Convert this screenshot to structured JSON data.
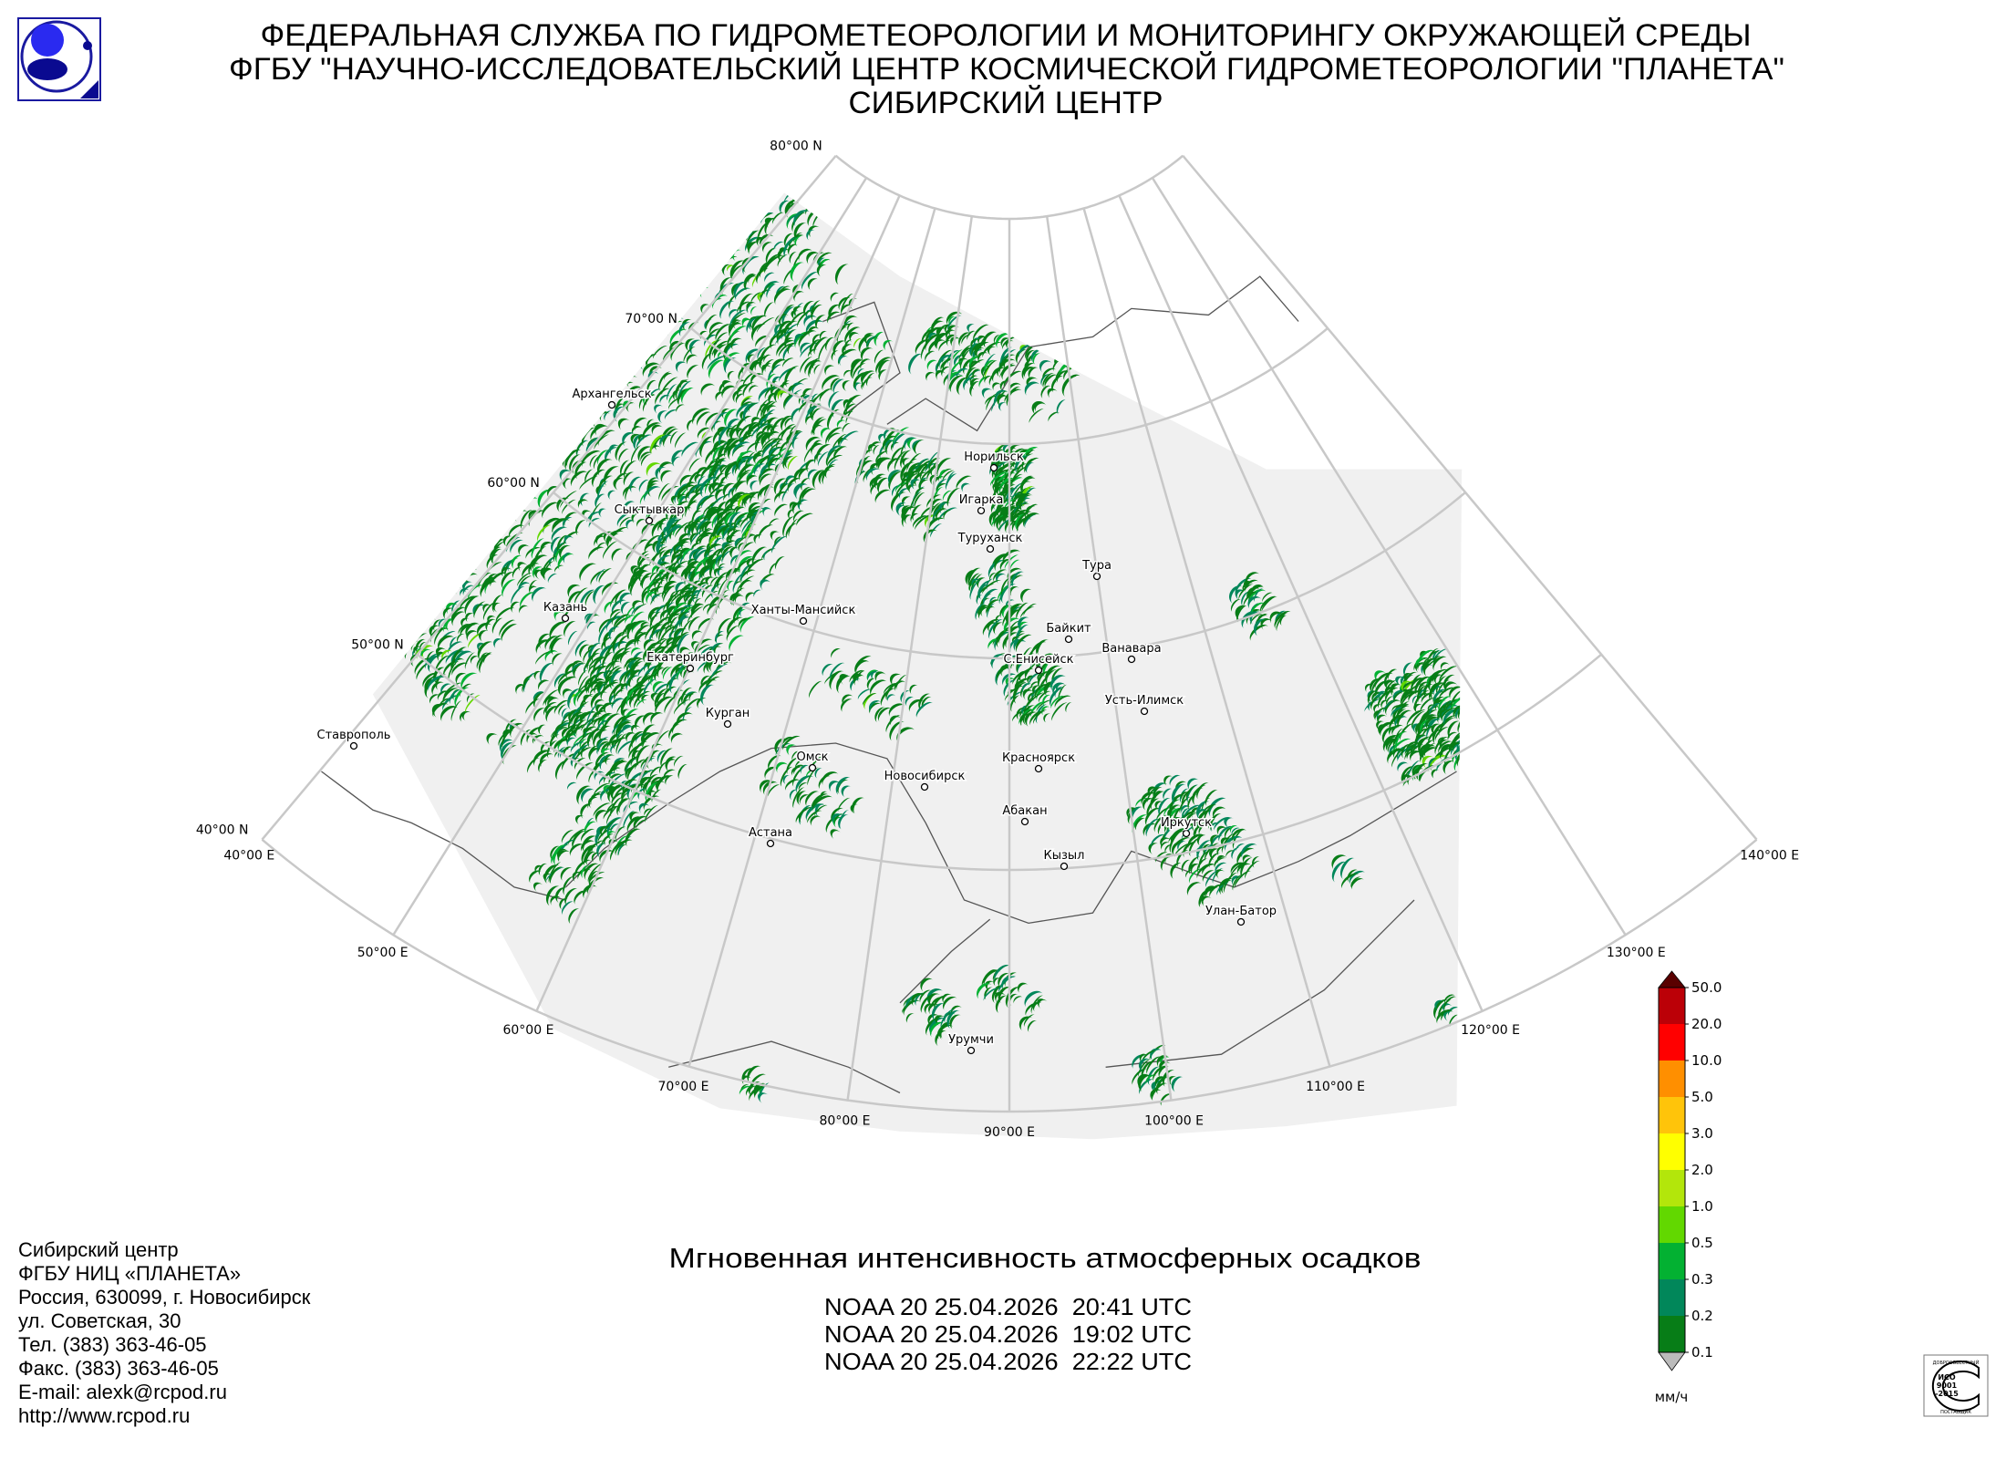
{
  "header": {
    "line1": "ФЕДЕРАЛЬНАЯ СЛУЖБА ПО ГИДРОМЕТЕОРОЛОГИИ И МОНИТОРИНГУ ОКРУЖАЮЩЕЙ СРЕДЫ",
    "line2": "ФГБУ \"НАУЧНО-ИССЛЕДОВАТЕЛЬСКИЙ ЦЕНТР КОСМИЧЕСКОЙ ГИДРОМЕТЕОРОЛОГИИ \"ПЛАНЕТА\"",
    "line3": "СИБИРСКИЙ ЦЕНТР",
    "logo_icon": "planeta-logo-icon"
  },
  "map": {
    "latitudes": [
      "80°00 N",
      "70°00 N",
      "60°00 N",
      "50°00 N",
      "40°00 N"
    ],
    "longitudes": [
      "40°00 E",
      "50°00 E",
      "60°00 E",
      "70°00 E",
      "80°00 E",
      "90°00 E",
      "100°00 E",
      "110°00 E",
      "120°00 E",
      "130°00 E",
      "140°00 E"
    ],
    "cities": [
      "Архангельск",
      "Сыктывкар",
      "Казань",
      "Екатеринбург",
      "Ставрополь",
      "Курган",
      "Ханты-Мансийск",
      "Омск",
      "Астана",
      "Новосибирск",
      "Норильск",
      "Игарка",
      "Туруханск",
      "Тура",
      "Байкит",
      "С.Енисейск",
      "Ванавара",
      "Усть-Илимск",
      "Красноярск",
      "Абакан",
      "Кызыл",
      "Иркутск",
      "Улан-Батор",
      "Урумчи"
    ],
    "coverage_color": "#f0f0f0",
    "grid_color": "#c8c8c8"
  },
  "legend": {
    "unit": "мм/ч",
    "ticks": [
      "0.1",
      "0.2",
      "0.3",
      "0.5",
      "1.0",
      "2.0",
      "3.0",
      "5.0",
      "10.0",
      "20.0",
      "50.0"
    ],
    "colors": [
      "#077d17",
      "#01875a",
      "#03b132",
      "#62d800",
      "#b3e60b",
      "#ffff00",
      "#ffc40a",
      "#ff8f00",
      "#ff0000",
      "#bb0007"
    ],
    "over_color": "#5a0000",
    "under_color": "#bbbbbb"
  },
  "title": "Мгновенная интенсивность атмосферных осадков",
  "passes": [
    "NOAA 20 25.04.2026  20:41 UTC",
    "NOAA 20 25.04.2026  19:02 UTC",
    "NOAA 20 25.04.2026  22:22 UTC"
  ],
  "contacts": [
    "Сибирский центр",
    "ФГБУ НИЦ «ПЛАНЕТА»",
    "Россия, 630099, г. Новосибирск",
    "ул. Советская, 30",
    "Тел. (383) 363-46-05",
    "Факс. (383) 363-46-05",
    "E-mail: alexk@rcpod.ru",
    "http://www.rcpod.ru"
  ],
  "iso_badge": {
    "top": "ДОБРОСОВЕСТНЫЙ",
    "line1": "ИСО",
    "line2": "9001",
    "line3": "-2015",
    "bottom": "ПОСТАВЩИК"
  }
}
